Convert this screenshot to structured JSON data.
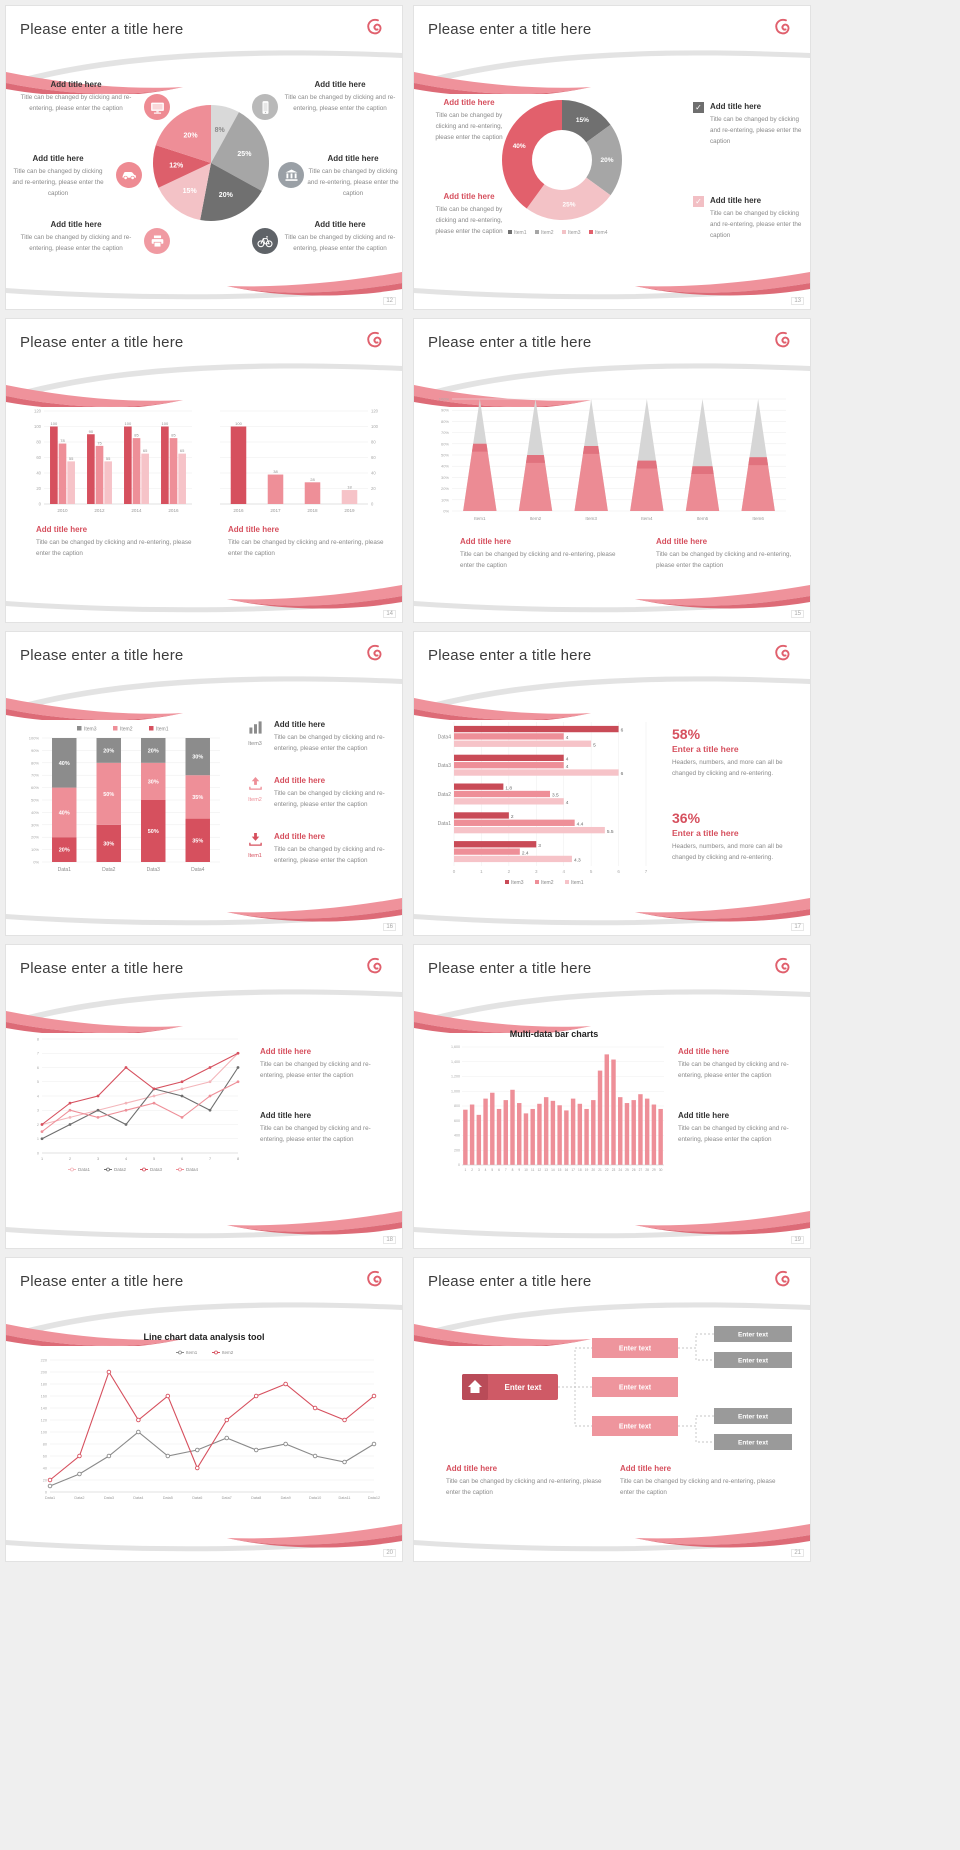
{
  "theme": {
    "primary": "#d6505e",
    "pink": "#ee8f98",
    "light_pink": "#f6c3c8",
    "ribbon": "#ef929b",
    "gray": "#8c8c8c",
    "title_color": "#3d3d3d"
  },
  "glyphs": {
    "check": "✓"
  },
  "common": {
    "slide_title": "Please enter a title here",
    "add_title": "Add title here",
    "caption": "Title can be changed by clicking and re-entering, please enter the caption",
    "enter_title": "Enter a title here",
    "stat_caption": "Headers, numbers, and more can all be changed by clicking and re-entering."
  },
  "slides": [
    {
      "page": "12",
      "icons": [
        "tv-icon",
        "phone-icon",
        "car-icon",
        "bank-icon",
        "printer-icon",
        "bike-icon"
      ]
    },
    {
      "page": "13"
    },
    {
      "page": "14"
    },
    {
      "page": "15"
    },
    {
      "page": "16",
      "items": [
        {
          "icon": "bar-chart-icon",
          "label": "Item3"
        },
        {
          "icon": "upload-icon",
          "label": "Item2"
        },
        {
          "icon": "download-icon",
          "label": "Item1"
        }
      ]
    },
    {
      "page": "17",
      "stats": [
        {
          "value": "58%"
        },
        {
          "value": "36%"
        }
      ]
    },
    {
      "page": "18"
    },
    {
      "page": "19"
    },
    {
      "page": "20"
    },
    {
      "page": "21"
    }
  ],
  "chart_data": [
    {
      "slot": "pie12",
      "type": "pie",
      "labels": [
        "8%",
        "25%",
        "20%",
        "15%",
        "12%",
        "20%"
      ],
      "values": [
        8,
        25,
        20,
        15,
        12,
        20
      ],
      "colors": [
        "#d9d9d9",
        "#a6a6a6",
        "#707070",
        "#f3c2c6",
        "#dd5f6b",
        "#ee8e97"
      ]
    },
    {
      "slot": "donut13",
      "type": "donut",
      "labels": [
        "15%",
        "20%",
        "25%",
        "40%"
      ],
      "values": [
        15,
        20,
        25,
        40
      ],
      "colors": [
        "#707070",
        "#a6a6a6",
        "#f3c2c6",
        "#e2606c"
      ],
      "legend": [
        "Item1",
        "Item2",
        "Item3",
        "Item4"
      ]
    },
    {
      "slot": "bars14a",
      "type": "bar",
      "categories": [
        "2010",
        "2012",
        "2014",
        "2016"
      ],
      "series": [
        {
          "name": "Series1",
          "color": "#d6505e",
          "values": [
            100,
            90,
            100,
            100
          ]
        },
        {
          "name": "Series2",
          "color": "#ee8f98",
          "values": [
            78,
            75,
            85,
            85
          ]
        },
        {
          "name": "Series3",
          "color": "#f6c3c8",
          "values": [
            55,
            55,
            65,
            65
          ]
        }
      ],
      "ylim": [
        0,
        120
      ],
      "ystep": 20,
      "value_labels": true,
      "yaxis": "left"
    },
    {
      "slot": "bars14b",
      "type": "bar",
      "categories": [
        "2016",
        "2017",
        "2018",
        "2019"
      ],
      "series": [
        {
          "name": "Series1",
          "color": "#ee8f98",
          "colors": [
            "#d6505e",
            "#ee8f98",
            "#ee8f98",
            "#f6c3c8"
          ],
          "values": [
            100,
            38,
            28,
            18
          ]
        }
      ],
      "ylim": [
        0,
        120
      ],
      "ystep": 20,
      "value_labels": true,
      "yaxis": "right"
    },
    {
      "slot": "cones15",
      "type": "cone",
      "categories": [
        "Item1",
        "Item2",
        "Item3",
        "Item4",
        "Item5",
        "Item6"
      ],
      "values": [
        60,
        50,
        58,
        45,
        40,
        48
      ],
      "ylim": [
        0,
        100
      ],
      "ystep": 10,
      "cone_color": "#d6d6d6",
      "fill_color": "#ec8b94",
      "band_color": "#d95f6b"
    },
    {
      "slot": "stack16",
      "type": "stacked100",
      "categories": [
        "Data1",
        "Data2",
        "Data3",
        "Data4"
      ],
      "series": [
        {
          "name": "Item1",
          "color": "#d6505e",
          "values": [
            20,
            30,
            50,
            35
          ]
        },
        {
          "name": "Item2",
          "color": "#ee8f98",
          "values": [
            40,
            50,
            30,
            35
          ]
        },
        {
          "name": "Item3",
          "color": "#8c8c8c",
          "values": [
            40,
            20,
            20,
            30
          ]
        }
      ],
      "legend_order": [
        "Item3",
        "Item2",
        "Item1"
      ],
      "ylim": [
        0,
        100
      ],
      "ystep": 10
    },
    {
      "slot": "hbar17",
      "type": "hbar",
      "categories": [
        "Data4",
        "Data3",
        "Data2",
        "Data1"
      ],
      "series": [
        {
          "name": "Item3",
          "color": "#c94b57"
        },
        {
          "name": "Item2",
          "color": "#ee8f98"
        },
        {
          "name": "Item1",
          "color": "#f6c3c8"
        }
      ],
      "rows": [
        [
          6,
          4,
          5
        ],
        [
          4,
          4,
          6
        ],
        [
          1.8,
          3.5,
          4
        ],
        [
          2,
          4.4,
          5.5
        ]
      ],
      "extra_row": [
        3,
        2.4,
        4.3
      ],
      "xlim": [
        0,
        7
      ]
    },
    {
      "slot": "line18",
      "type": "line",
      "x": [
        "1",
        "2",
        "3",
        "4",
        "5",
        "6",
        "7",
        "8"
      ],
      "series": [
        {
          "name": "Data1",
          "color": "#f3b5ba",
          "values": [
            2,
            2.5,
            3,
            3.5,
            4,
            4.5,
            5,
            7
          ]
        },
        {
          "name": "Data2",
          "color": "#6e6e6e",
          "values": [
            1,
            2,
            3,
            2,
            4.5,
            4,
            3,
            6
          ]
        },
        {
          "name": "Data3",
          "color": "#d6505e",
          "values": [
            2,
            3.5,
            4,
            6,
            4.5,
            5,
            6,
            7
          ]
        },
        {
          "name": "Data4",
          "color": "#ee8f98",
          "values": [
            1.5,
            3,
            2.5,
            3,
            3.5,
            2.5,
            4,
            5
          ]
        }
      ],
      "ylim": [
        0,
        8
      ],
      "ystep": 1,
      "legend_pos": "bottom"
    },
    {
      "slot": "bars19",
      "type": "multibar",
      "title": "Multi-data bar charts",
      "x_labels": [
        "1",
        "2",
        "3",
        "4",
        "5",
        "6",
        "7",
        "8",
        "9",
        "10",
        "11",
        "12",
        "13",
        "14",
        "15",
        "16",
        "17",
        "18",
        "19",
        "20",
        "21",
        "22",
        "23",
        "24",
        "25",
        "26",
        "27",
        "28",
        "29",
        "30"
      ],
      "values": [
        750,
        820,
        680,
        900,
        980,
        760,
        880,
        1020,
        840,
        700,
        760,
        830,
        920,
        870,
        810,
        740,
        900,
        830,
        760,
        880,
        1280,
        1500,
        1430,
        920,
        840,
        880,
        960,
        900,
        820,
        760
      ],
      "color": "#ee8f98",
      "ylim": [
        0,
        1600
      ],
      "ystep": 200
    },
    {
      "slot": "line20",
      "type": "line",
      "title": "Line chart data analysis tool",
      "x": [
        "Data1",
        "Data2",
        "Data3",
        "Data4",
        "Data5",
        "Data6",
        "Data7",
        "Data8",
        "Data9",
        "Data10",
        "Data11",
        "Data12"
      ],
      "series": [
        {
          "name": "Item1",
          "color": "#8a8a8a",
          "values": [
            10,
            30,
            60,
            100,
            60,
            70,
            90,
            70,
            80,
            60,
            50,
            80
          ]
        },
        {
          "name": "Item2",
          "color": "#d6505e",
          "values": [
            20,
            60,
            200,
            120,
            160,
            40,
            120,
            160,
            180,
            140,
            120,
            160
          ]
        }
      ],
      "ylim": [
        0,
        220
      ],
      "ystep": 20,
      "legend_pos": "top",
      "open_markers": true
    },
    {
      "slot": "diagram21",
      "type": "diagram",
      "main": {
        "label": "Enter text",
        "color": "#cf5a66",
        "icon": "home-icon"
      },
      "mid": {
        "labels": [
          "Enter text",
          "Enter text",
          "Enter text"
        ],
        "color": "#ee959d"
      },
      "right": {
        "labels": [
          "Enter text",
          "Enter text",
          "Enter text",
          "Enter text"
        ],
        "color": "#9a9a9a"
      }
    }
  ]
}
